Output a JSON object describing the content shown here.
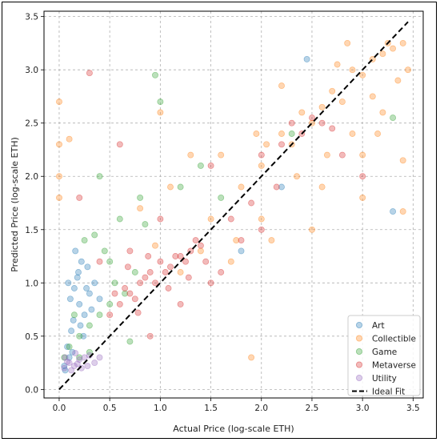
{
  "chart_data": {
    "type": "scatter",
    "title": "",
    "xlabel": "Actual Price (log-scale ETH)",
    "ylabel": "Predicted Price (log-scale ETH)",
    "xlim": [
      -0.15,
      3.6
    ],
    "ylim": [
      -0.08,
      3.55
    ],
    "xticks": [
      "0.0",
      "0.5",
      "1.0",
      "1.5",
      "2.0",
      "2.5",
      "3.0",
      "3.5"
    ],
    "yticks": [
      "0.0",
      "0.5",
      "1.0",
      "1.5",
      "2.0",
      "2.5",
      "3.0",
      "3.5"
    ],
    "grid": true,
    "legend_position": "bottom-right",
    "series": [
      {
        "name": "Art",
        "color": "#1f77b4",
        "points": [
          [
            0.05,
            0.22
          ],
          [
            0.1,
            0.3
          ],
          [
            0.12,
            0.55
          ],
          [
            0.15,
            0.95
          ],
          [
            0.18,
            1.05
          ],
          [
            0.2,
            0.8
          ],
          [
            0.22,
            1.2
          ],
          [
            0.25,
            0.7
          ],
          [
            0.28,
            1.15
          ],
          [
            0.3,
            0.9
          ],
          [
            0.08,
            0.4
          ],
          [
            0.16,
            1.3
          ],
          [
            0.35,
            1.0
          ],
          [
            0.14,
            0.65
          ],
          [
            0.24,
            0.5
          ],
          [
            0.32,
            0.75
          ],
          [
            0.4,
            0.85
          ],
          [
            0.11,
            0.85
          ],
          [
            0.19,
            1.1
          ],
          [
            0.27,
            0.95
          ],
          [
            2.45,
            3.1
          ],
          [
            3.3,
            1.67
          ],
          [
            2.2,
            1.9
          ],
          [
            1.8,
            1.3
          ],
          [
            0.06,
            0.18
          ],
          [
            0.09,
            1.0
          ],
          [
            0.21,
            0.6
          ],
          [
            0.13,
            0.35
          ]
        ]
      },
      {
        "name": "Collectible",
        "color": "#ff7f0e",
        "points": [
          [
            2.5,
            2.5
          ],
          [
            2.7,
            2.8
          ],
          [
            2.9,
            3.0
          ],
          [
            3.1,
            3.1
          ],
          [
            3.3,
            3.2
          ],
          [
            3.4,
            3.25
          ],
          [
            2.3,
            2.3
          ],
          [
            2.0,
            2.1
          ],
          [
            1.8,
            1.9
          ],
          [
            2.6,
            2.65
          ],
          [
            2.8,
            2.7
          ],
          [
            3.0,
            2.95
          ],
          [
            3.2,
            3.15
          ],
          [
            2.4,
            2.6
          ],
          [
            2.2,
            2.4
          ],
          [
            3.35,
            2.9
          ],
          [
            3.45,
            3.0
          ],
          [
            3.0,
            2.2
          ],
          [
            2.6,
            1.9
          ],
          [
            2.1,
            1.4
          ],
          [
            1.7,
            1.2
          ],
          [
            1.5,
            1.6
          ],
          [
            2.9,
            2.4
          ],
          [
            3.2,
            2.6
          ],
          [
            2.0,
            1.6
          ],
          [
            1.2,
            1.1
          ],
          [
            1.4,
            1.3
          ],
          [
            2.75,
            3.05
          ],
          [
            3.1,
            2.75
          ],
          [
            2.35,
            2.0
          ],
          [
            0.0,
            2.7
          ],
          [
            0.0,
            2.3
          ],
          [
            0.0,
            1.8
          ],
          [
            0.0,
            2.0
          ],
          [
            0.1,
            2.35
          ],
          [
            1.0,
            2.6
          ],
          [
            1.3,
            2.2
          ],
          [
            1.9,
            0.3
          ],
          [
            2.5,
            1.5
          ],
          [
            3.0,
            1.8
          ],
          [
            3.4,
            2.15
          ],
          [
            3.4,
            1.67
          ],
          [
            1.6,
            2.2
          ],
          [
            2.2,
            2.85
          ],
          [
            1.1,
            1.9
          ],
          [
            0.8,
            1.7
          ],
          [
            2.85,
            3.25
          ],
          [
            3.25,
            3.25
          ],
          [
            2.05,
            2.3
          ],
          [
            1.75,
            1.4
          ],
          [
            1.95,
            2.4
          ],
          [
            2.65,
            2.2
          ],
          [
            3.15,
            2.4
          ],
          [
            0.95,
            1.35
          ]
        ]
      },
      {
        "name": "Game",
        "color": "#2ca02c",
        "points": [
          [
            0.1,
            0.4
          ],
          [
            0.2,
            0.5
          ],
          [
            0.3,
            0.6
          ],
          [
            0.4,
            0.7
          ],
          [
            0.5,
            0.8
          ],
          [
            0.25,
            1.4
          ],
          [
            0.35,
            1.45
          ],
          [
            0.45,
            1.3
          ],
          [
            0.15,
            0.7
          ],
          [
            0.55,
            1.0
          ],
          [
            0.65,
            0.9
          ],
          [
            0.75,
            1.1
          ],
          [
            0.6,
            1.6
          ],
          [
            0.8,
            1.8
          ],
          [
            0.95,
            2.95
          ],
          [
            1.0,
            2.7
          ],
          [
            0.2,
            0.3
          ],
          [
            0.3,
            0.35
          ],
          [
            1.2,
            1.9
          ],
          [
            0.4,
            2.0
          ],
          [
            2.3,
            2.4
          ],
          [
            3.3,
            2.55
          ],
          [
            1.6,
            1.8
          ],
          [
            0.7,
            0.45
          ],
          [
            0.85,
            1.55
          ],
          [
            0.05,
            0.3
          ],
          [
            0.5,
            1.2
          ],
          [
            1.4,
            2.1
          ]
        ]
      },
      {
        "name": "Metaverse",
        "color": "#d62728",
        "points": [
          [
            0.6,
            0.8
          ],
          [
            0.7,
            0.9
          ],
          [
            0.8,
            1.0
          ],
          [
            0.9,
            1.1
          ],
          [
            1.0,
            1.2
          ],
          [
            1.1,
            1.15
          ],
          [
            1.2,
            1.25
          ],
          [
            1.3,
            1.3
          ],
          [
            1.4,
            1.35
          ],
          [
            0.65,
            0.95
          ],
          [
            0.75,
            0.85
          ],
          [
            0.85,
            1.05
          ],
          [
            0.95,
            1.0
          ],
          [
            1.05,
            1.1
          ],
          [
            1.15,
            1.25
          ],
          [
            1.25,
            1.2
          ],
          [
            1.35,
            1.4
          ],
          [
            1.45,
            1.2
          ],
          [
            0.5,
            0.7
          ],
          [
            0.55,
            0.9
          ],
          [
            2.3,
            2.5
          ],
          [
            2.4,
            2.4
          ],
          [
            2.5,
            2.55
          ],
          [
            2.6,
            2.5
          ],
          [
            2.7,
            2.45
          ],
          [
            2.2,
            2.3
          ],
          [
            2.0,
            1.5
          ],
          [
            1.8,
            1.4
          ],
          [
            1.6,
            1.1
          ],
          [
            1.5,
            1.0
          ],
          [
            0.3,
            2.97
          ],
          [
            0.6,
            2.3
          ],
          [
            1.0,
            1.6
          ],
          [
            1.5,
            2.1
          ],
          [
            2.0,
            2.2
          ],
          [
            2.8,
            2.2
          ],
          [
            3.0,
            2.0
          ],
          [
            1.2,
            0.8
          ],
          [
            0.9,
            0.5
          ],
          [
            0.4,
            1.2
          ],
          [
            0.2,
            1.8
          ],
          [
            0.7,
            1.3
          ],
          [
            1.7,
            1.6
          ],
          [
            1.9,
            1.75
          ],
          [
            2.15,
            1.9
          ],
          [
            0.78,
            0.72
          ],
          [
            1.08,
            0.95
          ],
          [
            1.28,
            1.05
          ],
          [
            0.88,
            1.25
          ],
          [
            0.68,
            1.15
          ]
        ]
      },
      {
        "name": "Utility",
        "color": "#9467bd",
        "points": [
          [
            0.05,
            0.2
          ],
          [
            0.1,
            0.25
          ],
          [
            0.15,
            0.22
          ],
          [
            0.2,
            0.28
          ],
          [
            0.25,
            0.3
          ],
          [
            0.3,
            0.32
          ],
          [
            0.12,
            0.18
          ],
          [
            0.18,
            0.24
          ],
          [
            0.08,
            0.26
          ],
          [
            0.22,
            0.2
          ],
          [
            0.35,
            0.25
          ],
          [
            0.28,
            0.22
          ],
          [
            0.4,
            0.3
          ],
          [
            0.06,
            0.3
          ],
          [
            0.16,
            0.34
          ]
        ]
      }
    ],
    "ideal_fit": {
      "label": "Ideal Fit",
      "x": [
        0.0,
        3.45
      ],
      "y": [
        0.0,
        3.45
      ],
      "color": "#000000"
    }
  }
}
